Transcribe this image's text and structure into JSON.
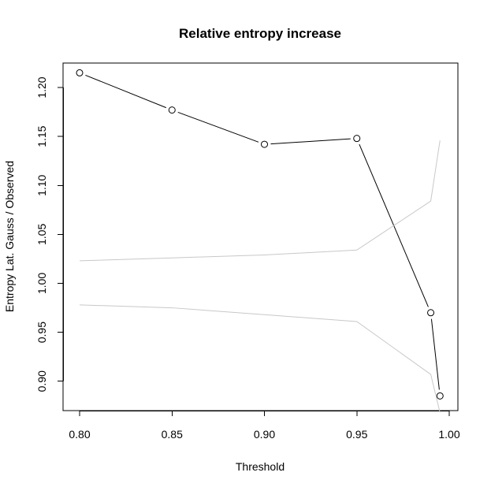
{
  "chart_data": {
    "type": "line",
    "title": "Relative entropy increase",
    "xlabel": "Threshold",
    "ylabel": "Entropy Lat. Gauss / Observed",
    "xlim": [
      0.8,
      1.0
    ],
    "ylim": [
      0.87,
      1.225
    ],
    "xticks": [
      "0.80",
      "0.85",
      "0.90",
      "0.95",
      "1.00"
    ],
    "yticks": [
      "0.90",
      "0.95",
      "1.00",
      "1.05",
      "1.10",
      "1.15",
      "1.20"
    ],
    "grid": false,
    "legend": "none",
    "series": [
      {
        "x": [
          0.8,
          0.85,
          0.9,
          0.95,
          0.99,
          0.995
        ],
        "values": [
          1.215,
          1.177,
          1.142,
          1.148,
          0.97,
          0.885
        ],
        "color": "#000000",
        "marker": "open-circle"
      },
      {
        "x": [
          0.8,
          0.85,
          0.9,
          0.95,
          0.99,
          0.995
        ],
        "values": [
          1.023,
          1.026,
          1.029,
          1.034,
          1.084,
          1.146
        ],
        "color": "#c8c8c8",
        "marker": "none"
      },
      {
        "x": [
          0.8,
          0.85,
          0.9,
          0.95,
          0.99,
          0.995
        ],
        "values": [
          0.978,
          0.975,
          0.968,
          0.961,
          0.907,
          0.868
        ],
        "color": "#c8c8c8",
        "marker": "none"
      }
    ]
  }
}
